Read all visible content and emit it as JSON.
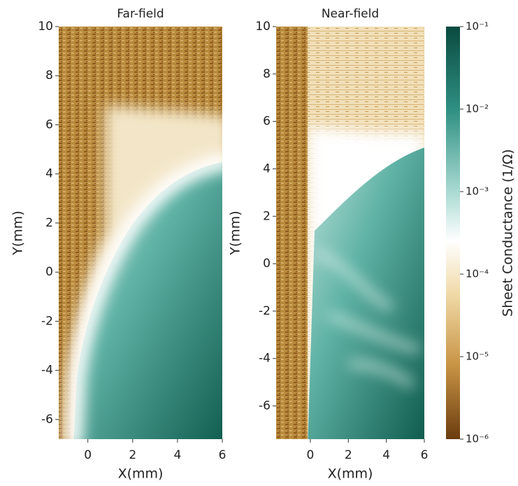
{
  "chart_data": [
    {
      "type": "heatmap",
      "title": "Far-field",
      "xlabel": "X(mm)",
      "ylabel": "Y(mm)",
      "xlim": [
        -1.3,
        6
      ],
      "ylim": [
        -6.8,
        10
      ],
      "xticks": [
        0,
        2,
        4,
        6
      ],
      "yticks": [
        -6,
        -4,
        -2,
        0,
        2,
        4,
        6,
        8,
        10
      ]
    },
    {
      "type": "heatmap",
      "title": "Near-field",
      "xlabel": "X(mm)",
      "ylabel": "Y(mm)",
      "xlim": [
        -1.8,
        6
      ],
      "ylim": [
        -7.4,
        10
      ],
      "xticks": [
        0,
        2,
        4,
        6
      ],
      "yticks": [
        -6,
        -4,
        -2,
        0,
        2,
        4,
        6,
        8,
        10
      ]
    }
  ],
  "colorbar": {
    "label": "Sheet Conductance (1/Ω)",
    "log": true,
    "lim": [
      1e-06,
      0.1
    ],
    "ticks": [
      {
        "value": 0.1,
        "label": "10⁻¹"
      },
      {
        "value": 0.01,
        "label": "10⁻²"
      },
      {
        "value": 0.001,
        "label": "10⁻³"
      },
      {
        "value": 0.0001,
        "label": "10⁻⁴"
      },
      {
        "value": 1e-05,
        "label": "10⁻⁵"
      },
      {
        "value": 1e-06,
        "label": "10⁻⁶"
      }
    ]
  }
}
